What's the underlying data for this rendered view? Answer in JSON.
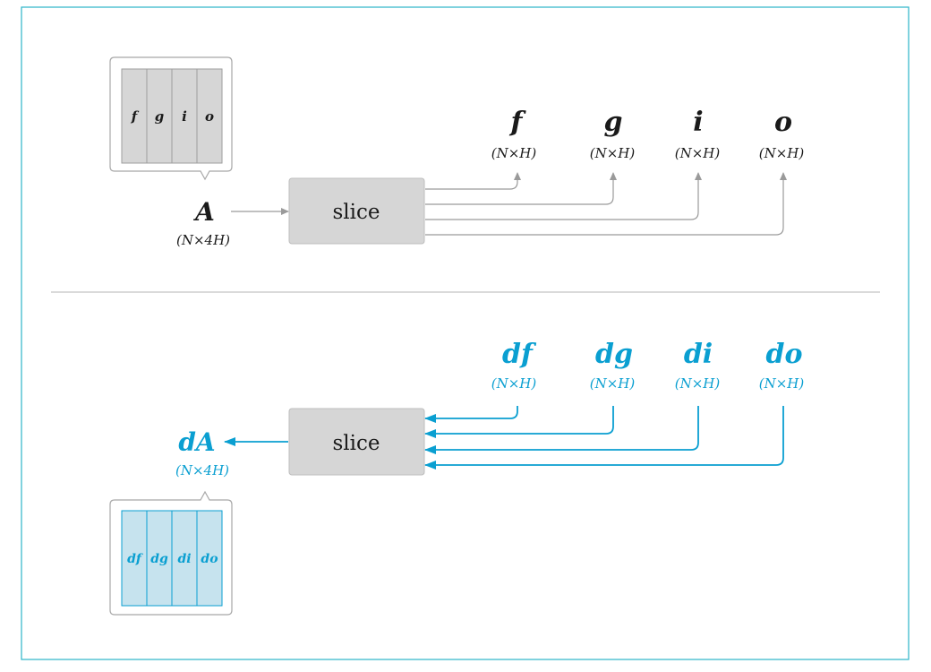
{
  "forward": {
    "input": {
      "symbol": "A",
      "dims": "(N×4H)"
    },
    "block_label": "slice",
    "strip_cells": [
      "f",
      "g",
      "i",
      "o"
    ],
    "outputs": [
      {
        "symbol": "f",
        "dims": "(N×H)"
      },
      {
        "symbol": "g",
        "dims": "(N×H)"
      },
      {
        "symbol": "i",
        "dims": "(N×H)"
      },
      {
        "symbol": "o",
        "dims": "(N×H)"
      }
    ]
  },
  "backward": {
    "output": {
      "symbol": "dA",
      "dims": "(N×4H)"
    },
    "block_label": "slice",
    "strip_cells": [
      "df",
      "dg",
      "di",
      "do"
    ],
    "inputs": [
      {
        "symbol": "df",
        "dims": "(N×H)"
      },
      {
        "symbol": "dg",
        "dims": "(N×H)"
      },
      {
        "symbol": "di",
        "dims": "(N×H)"
      },
      {
        "symbol": "do",
        "dims": "(N×H)"
      }
    ]
  },
  "colors": {
    "frame": "#2bb3c9",
    "gray_fill": "#d6d6d6",
    "gray_stroke": "#999999",
    "arrow_gray": "#9a9a9a",
    "blue": "#0a9fd1",
    "light_blue": "#c6e3ee",
    "text": "#1a1a1a"
  }
}
